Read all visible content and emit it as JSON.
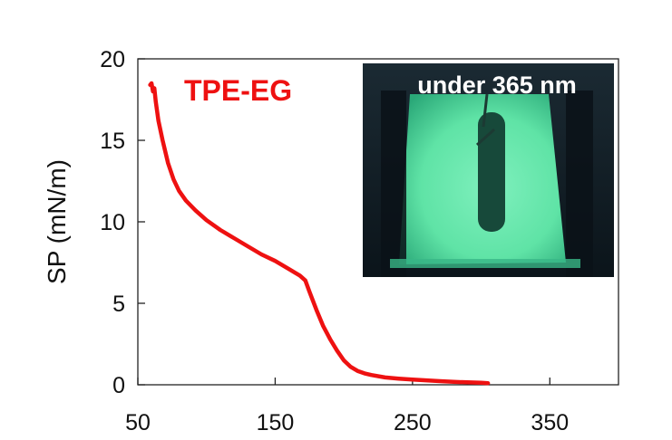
{
  "chart_data": {
    "type": "line",
    "title": "",
    "xlabel": "",
    "ylabel": "SP (mN/m)",
    "xlim": [
      50,
      400
    ],
    "ylim": [
      0,
      20
    ],
    "xticks": [
      50,
      150,
      250,
      350
    ],
    "yticks": [
      0,
      5,
      10,
      15,
      20
    ],
    "grid": false,
    "series": [
      {
        "name": "TPE-EG",
        "color": "#ee1111",
        "x": [
          59,
          60,
          61,
          62,
          63,
          65,
          68,
          72,
          76,
          80,
          85,
          92,
          100,
          110,
          120,
          130,
          140,
          150,
          160,
          168,
          172,
          175,
          180,
          185,
          190,
          195,
          200,
          205,
          210,
          215,
          220,
          230,
          240,
          250,
          260,
          270,
          280,
          290,
          300,
          305
        ],
        "y": [
          18.4,
          18.5,
          18.0,
          18.2,
          17.4,
          16.2,
          15.0,
          13.6,
          12.6,
          11.9,
          11.3,
          10.7,
          10.1,
          9.5,
          9.0,
          8.5,
          8.0,
          7.6,
          7.1,
          6.7,
          6.4,
          5.7,
          4.6,
          3.6,
          2.8,
          2.1,
          1.5,
          1.1,
          0.85,
          0.7,
          0.6,
          0.45,
          0.38,
          0.32,
          0.27,
          0.22,
          0.18,
          0.15,
          0.12,
          0.1
        ]
      }
    ],
    "inset": {
      "caption": "under 365 nm",
      "colors": {
        "frame": "#0e1a22",
        "glow": "#5fe3a6",
        "glow_edge": "#2aa878",
        "slot": "#123d30"
      }
    }
  }
}
